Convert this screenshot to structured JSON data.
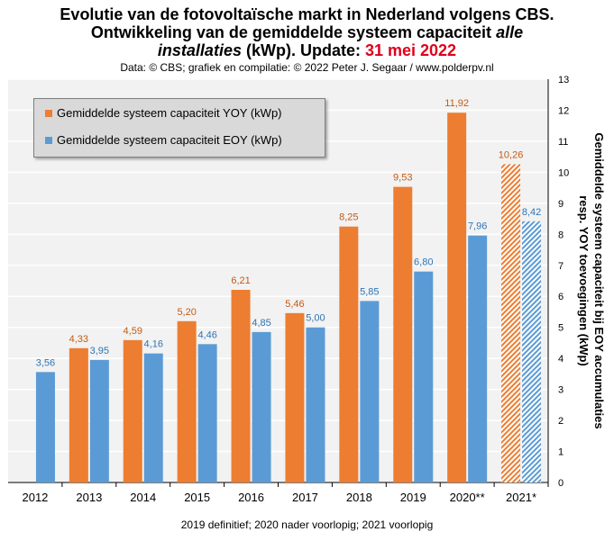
{
  "title": {
    "line1": "Evolutie van de fotovoltaïsche  markt in Nederland volgens CBS.",
    "line2": "Ontwikkeling  van de gemiddelde  systeem  capaciteit",
    "line2_italic": "alle",
    "line3_italic": "installaties",
    "line3_text": " (kWp). Update: ",
    "line3_date": "31 mei 2022"
  },
  "subtitle": "Data: © CBS; grafiek en compilatie: © 2022 Peter J. Segaar / www.polderpv.nl",
  "footnote": "2019 definitief;  2020 nader voorlopig;  2021 voorlopig",
  "colors": {
    "yoy": "#ed7d31",
    "eoy": "#5b9bd5",
    "yoy_label": "#c55a11",
    "eoy_label": "#2e75b6",
    "plot_bg": "#f2f2f2",
    "grid": "#ffffff"
  },
  "chart_data": {
    "type": "bar",
    "categories": [
      "2012",
      "2013",
      "2014",
      "2015",
      "2016",
      "2017",
      "2018",
      "2019",
      "2020**",
      "2021*"
    ],
    "series": [
      {
        "name": "Gemiddelde systeem capaciteit YOY (kWp)",
        "values": [
          null,
          4.33,
          4.59,
          5.2,
          6.21,
          5.46,
          8.25,
          9.53,
          11.92,
          10.26
        ],
        "labels": [
          "",
          "4,33",
          "4,59",
          "5,20",
          "6,21",
          "5,46",
          "8,25",
          "9,53",
          "11,92",
          "10,26"
        ]
      },
      {
        "name": "Gemiddelde systeem capaciteit EOY (kWp)",
        "values": [
          3.56,
          3.95,
          4.16,
          4.46,
          4.85,
          5.0,
          5.85,
          6.8,
          7.96,
          8.42
        ],
        "labels": [
          "3,56",
          "3,95",
          "4,16",
          "4,46",
          "4,85",
          "5,00",
          "5,85",
          "6,80",
          "7,96",
          "8,42"
        ]
      }
    ],
    "hatched_category": "2021*",
    "ylabel_line1": "Gemiddelde  systeem capaciteit bij EOY accumulaties",
    "ylabel_line2": "resp. YOY toevoegingen (kWp)",
    "ylim": [
      0,
      13
    ],
    "yticks": [
      "0",
      "1",
      "2",
      "3",
      "4",
      "5",
      "6",
      "7",
      "8",
      "9",
      "10",
      "11",
      "12",
      "13"
    ],
    "y_axis_side": "right",
    "legend_position": "top-left",
    "grid": true
  }
}
